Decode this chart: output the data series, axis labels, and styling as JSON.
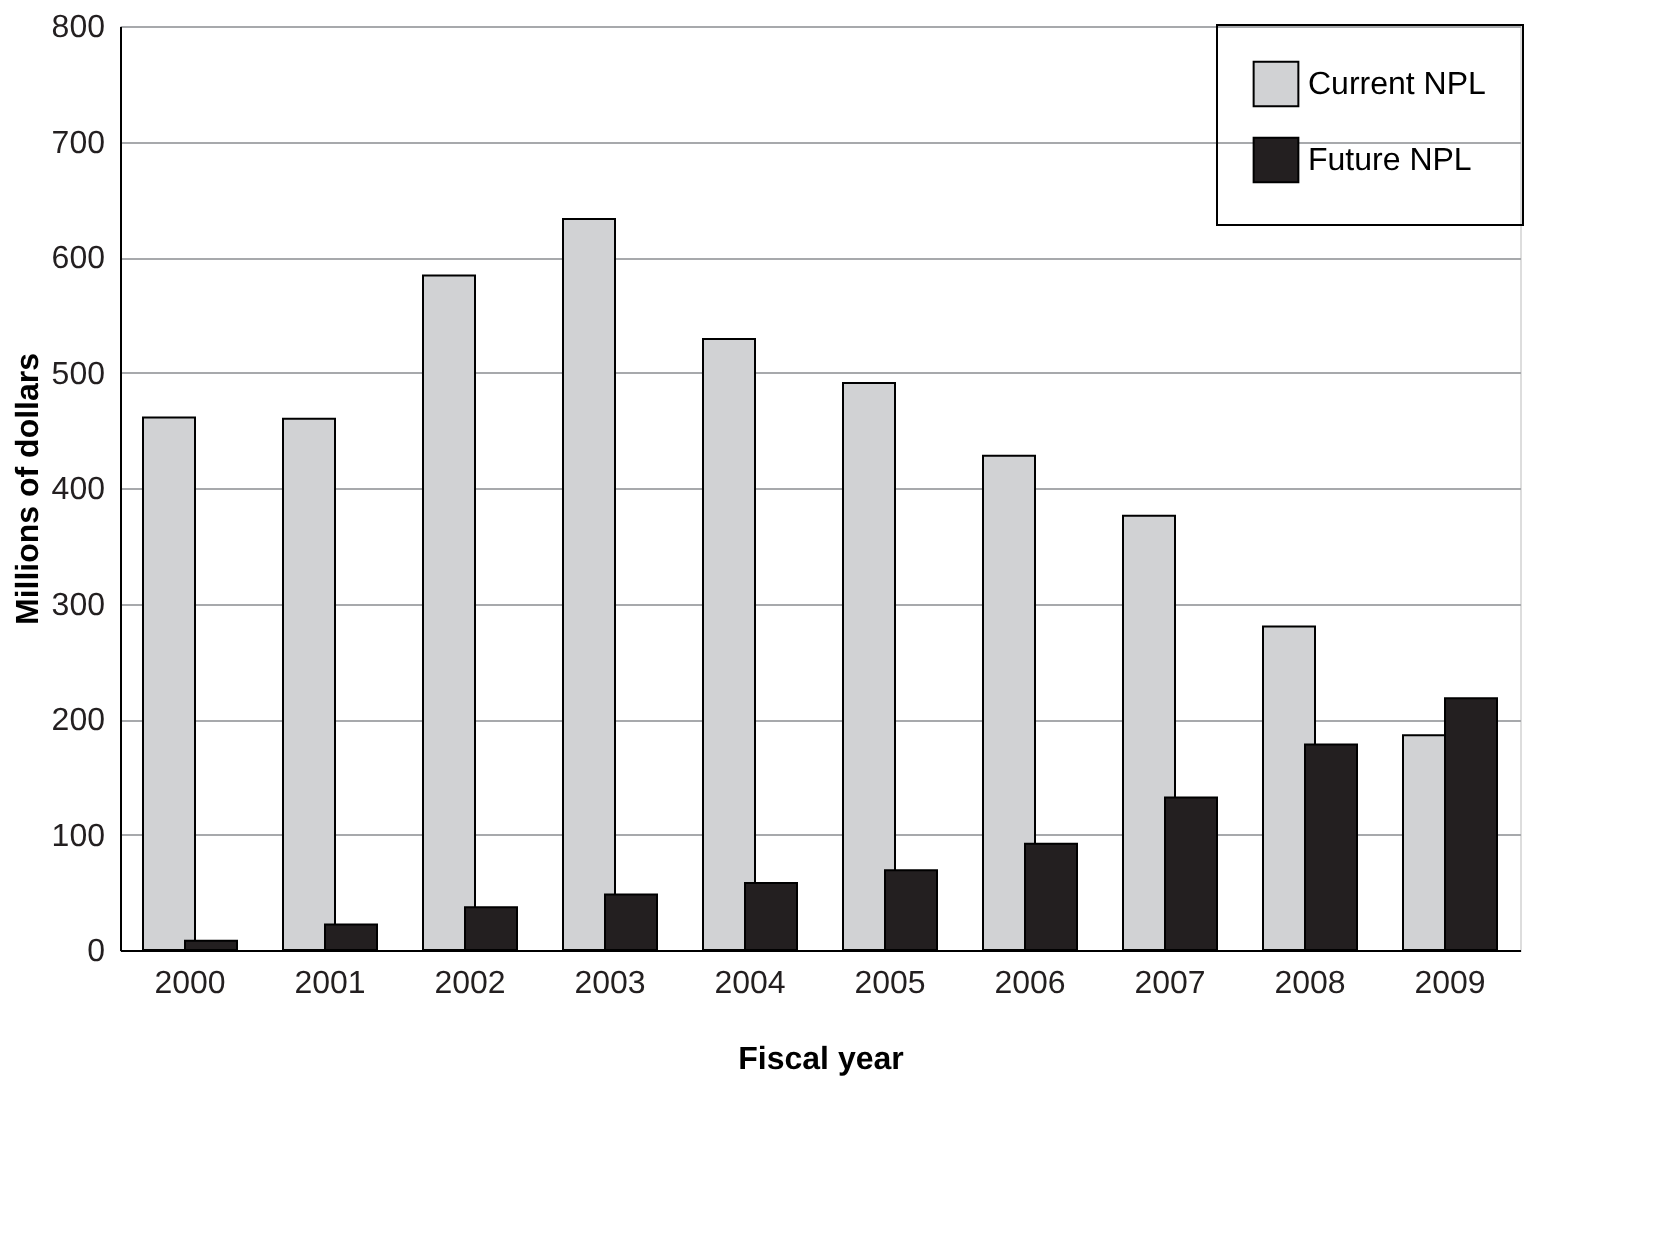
{
  "chart_data": {
    "type": "bar",
    "xlabel": "Fiscal year",
    "ylabel": "Millions of dollars",
    "categories": [
      "2000",
      "2001",
      "2002",
      "2003",
      "2004",
      "2005",
      "2006",
      "2007",
      "2008",
      "2009"
    ],
    "series": [
      {
        "name": "Current NPL",
        "color": "#d1d2d4",
        "values": [
          461,
          460,
          584,
          633,
          529,
          491,
          428,
          376,
          280,
          186
        ]
      },
      {
        "name": "Future NPL",
        "color": "#231f20",
        "values": [
          8,
          22,
          37,
          48,
          58,
          69,
          92,
          132,
          178,
          218
        ]
      }
    ],
    "ylim": [
      0,
      800
    ],
    "yticks": [
      0,
      100,
      200,
      300,
      400,
      500,
      600,
      700,
      800
    ],
    "grid": "y",
    "legend": "top right"
  }
}
